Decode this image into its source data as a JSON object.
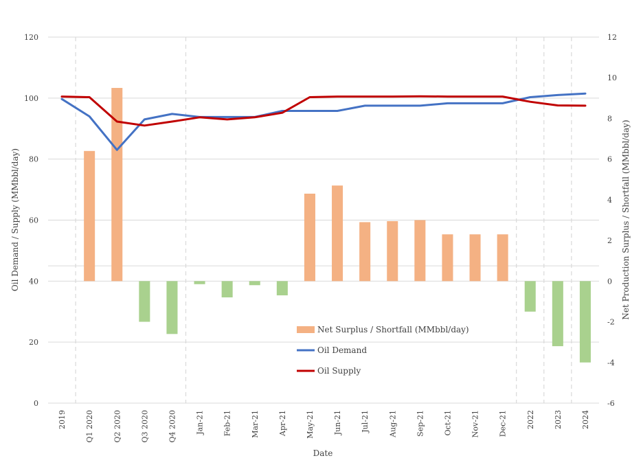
{
  "chart_data": {
    "type": "bar+line",
    "title": "",
    "xlabel": "Date",
    "ylabel_left": "Oil Demand / Supply (MMbbl/day)",
    "ylabel_right": "Net Production Surplus / Shortfall (MMbbl/day)",
    "ylim_left": [
      0,
      120
    ],
    "yticks_left": [
      "0",
      "20",
      "40",
      "60",
      "80",
      "100",
      "120"
    ],
    "ylim_right": [
      -6,
      12
    ],
    "yticks_right": [
      "-6",
      "-4",
      "-2",
      "0",
      "2",
      "4",
      "6",
      "8",
      "10",
      "12"
    ],
    "grid": true,
    "legend_position": "center-bottom",
    "categories": [
      "2019",
      "Q1 2020",
      "Q2 2020",
      "Q3 2020",
      "Q4 2020",
      "Jan-21",
      "Feb-21",
      "Mar-21",
      "Apr-21",
      "May-21",
      "Jun-21",
      "Jul-21",
      "Aug-21",
      "Sep-21",
      "Oct-21",
      "Nov-21",
      "Dec-21",
      "2022",
      "2023",
      "2024"
    ],
    "series": [
      {
        "name": "Net Surplus / Shortfall (MMbbl/day)",
        "kind": "bar",
        "axis": "right",
        "values": [
          null,
          6.4,
          9.5,
          -2.0,
          -2.6,
          -0.15,
          -0.8,
          -0.2,
          -0.7,
          4.3,
          4.7,
          2.9,
          2.95,
          3.0,
          2.3,
          2.3,
          2.3,
          -1.5,
          -3.2,
          -4.0
        ]
      },
      {
        "name": "Oil Demand",
        "kind": "line",
        "axis": "left",
        "values": [
          99.7,
          94.0,
          83.0,
          93.0,
          94.8,
          93.8,
          93.8,
          93.8,
          95.8,
          95.8,
          95.8,
          97.5,
          97.5,
          97.5,
          98.3,
          98.3,
          98.3,
          100.3,
          101.0,
          101.5
        ]
      },
      {
        "name": "Oil Supply",
        "kind": "line",
        "axis": "left",
        "values": [
          100.5,
          100.3,
          92.3,
          91.0,
          92.3,
          93.7,
          93.0,
          93.7,
          95.2,
          100.3,
          100.5,
          100.5,
          100.5,
          100.6,
          100.5,
          100.5,
          100.5,
          98.8,
          97.6,
          97.5
        ]
      }
    ],
    "colors": {
      "bar_positive": "#f4b183",
      "bar_negative": "#a9d18e",
      "demand": "#4472c4",
      "supply": "#c00000",
      "grid": "#d9d9d9",
      "divider": "#d9d9d9"
    }
  }
}
